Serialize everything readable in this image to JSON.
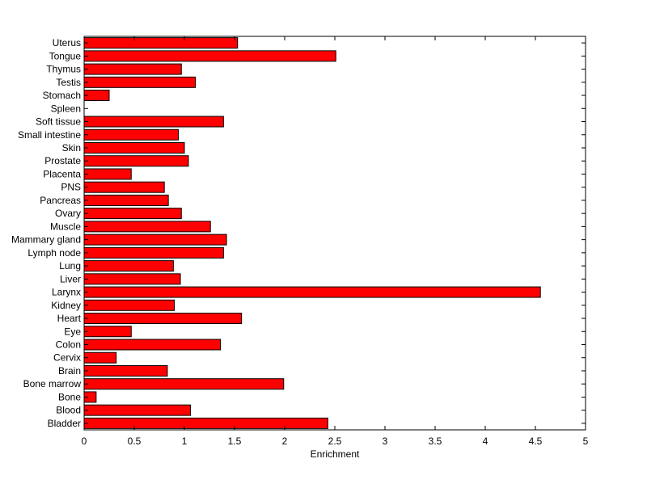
{
  "chart_data": {
    "type": "bar",
    "orientation": "horizontal",
    "title": "",
    "xlabel": "Enrichment",
    "ylabel": "",
    "xlim": [
      0,
      5
    ],
    "x_ticks": [
      0,
      0.5,
      1,
      1.5,
      2,
      2.5,
      3,
      3.5,
      4,
      4.5,
      5
    ],
    "x_tick_labels": [
      "0",
      "0.5",
      "1",
      "1.5",
      "2",
      "2.5",
      "3",
      "3.5",
      "4",
      "4.5",
      "5"
    ],
    "grid": false,
    "bar_color": "#ff0000",
    "bar_edge_color": "#000000",
    "categories": [
      "Bladder",
      "Blood",
      "Bone",
      "Bone marrow",
      "Brain",
      "Cervix",
      "Colon",
      "Eye",
      "Heart",
      "Kidney",
      "Larynx",
      "Liver",
      "Lung",
      "Lymph node",
      "Mammary gland",
      "Muscle",
      "Ovary",
      "Pancreas",
      "PNS",
      "Placenta",
      "Prostate",
      "Skin",
      "Small intestine",
      "Soft tissue",
      "Spleen",
      "Stomach",
      "Testis",
      "Thymus",
      "Tongue",
      "Uterus"
    ],
    "values": [
      2.43,
      1.06,
      0.12,
      1.99,
      0.83,
      0.32,
      1.36,
      0.47,
      1.57,
      0.9,
      4.55,
      0.96,
      0.89,
      1.39,
      1.42,
      1.26,
      0.97,
      0.84,
      0.8,
      0.47,
      1.04,
      1.0,
      0.94,
      1.39,
      0.0,
      0.25,
      1.11,
      0.97,
      2.51,
      1.53
    ]
  }
}
